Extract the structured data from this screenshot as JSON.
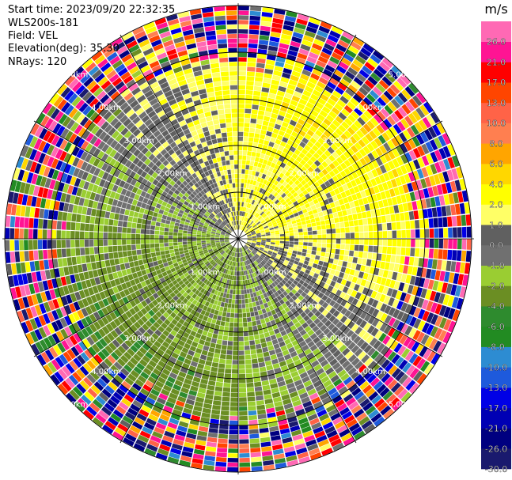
{
  "header": {
    "start_time": "Start time: 2023/09/20 22:32:35",
    "device": "WLS200s-181",
    "field": "Field: VEL",
    "elevation": "Elevation(deg): 35.30",
    "nrays": "NRays: 120"
  },
  "chart_data": {
    "type": "heatmap",
    "subtype": "polar-ppi",
    "field": "VEL",
    "unit": "m/s",
    "rays": 120,
    "range_rings_km": [
      1.0,
      2.0,
      3.0,
      4.0,
      5.0
    ],
    "ring_labels": [
      "1.00km",
      "2.00km",
      "3.00km",
      "4.00km",
      "5.00km"
    ],
    "spokes_deg": [
      0,
      30,
      60,
      90,
      120,
      150,
      180,
      210,
      240,
      270,
      300,
      330
    ],
    "max_range_km": 5.05,
    "colorbar": {
      "label": "m/s",
      "levels": [
        -30.0,
        -26.0,
        -21.0,
        -17.0,
        -13.0,
        -10.0,
        -8.0,
        -6.0,
        -4.0,
        -2.0,
        -1.0,
        0.0,
        1.0,
        2.0,
        4.0,
        6.0,
        8.0,
        10.0,
        13.0,
        17.0,
        21.0,
        26.0,
        30.0
      ],
      "tick_labels": [
        "-30.0",
        "-26.0",
        "-21.0",
        "-17.0",
        "-13.0",
        "-10.0",
        "-8.0",
        "-6.0",
        "-4.0",
        "-2.0",
        "-1.0",
        "0.0",
        "1.0",
        "2.0",
        "4.0",
        "6.0",
        "8.0",
        "10.0",
        "13.0",
        "17.0",
        "21.0",
        "26.0"
      ],
      "colors": [
        "#1a1a6e",
        "#000080",
        "#0000b4",
        "#0000e6",
        "#1e5adc",
        "#2d8cd2",
        "#228b22",
        "#2e8b2e",
        "#6b8e23",
        "#9acd32",
        "#707070",
        "#606060",
        "#ffff66",
        "#ffff00",
        "#ffd700",
        "#ffa500",
        "#ff7f50",
        "#ff6347",
        "#ff4500",
        "#ff0000",
        "#ff1493",
        "#ff69b4"
      ]
    },
    "regions": [
      {
        "description": "inner north-east sector positive velocity",
        "az_from": 330,
        "az_to": 120,
        "range_km": [
          0.0,
          3.6
        ],
        "values": [
          1.0,
          2.0,
          4.0,
          6.0
        ]
      },
      {
        "description": "inner south-west sector negative velocity",
        "az_from": 150,
        "az_to": 300,
        "range_km": [
          0.0,
          3.6
        ],
        "values": [
          -1.0,
          -2.0,
          -4.0,
          -6.0
        ]
      },
      {
        "description": "outer noise rim",
        "range_km": [
          3.6,
          5.05
        ],
        "values": "mixed"
      }
    ]
  }
}
